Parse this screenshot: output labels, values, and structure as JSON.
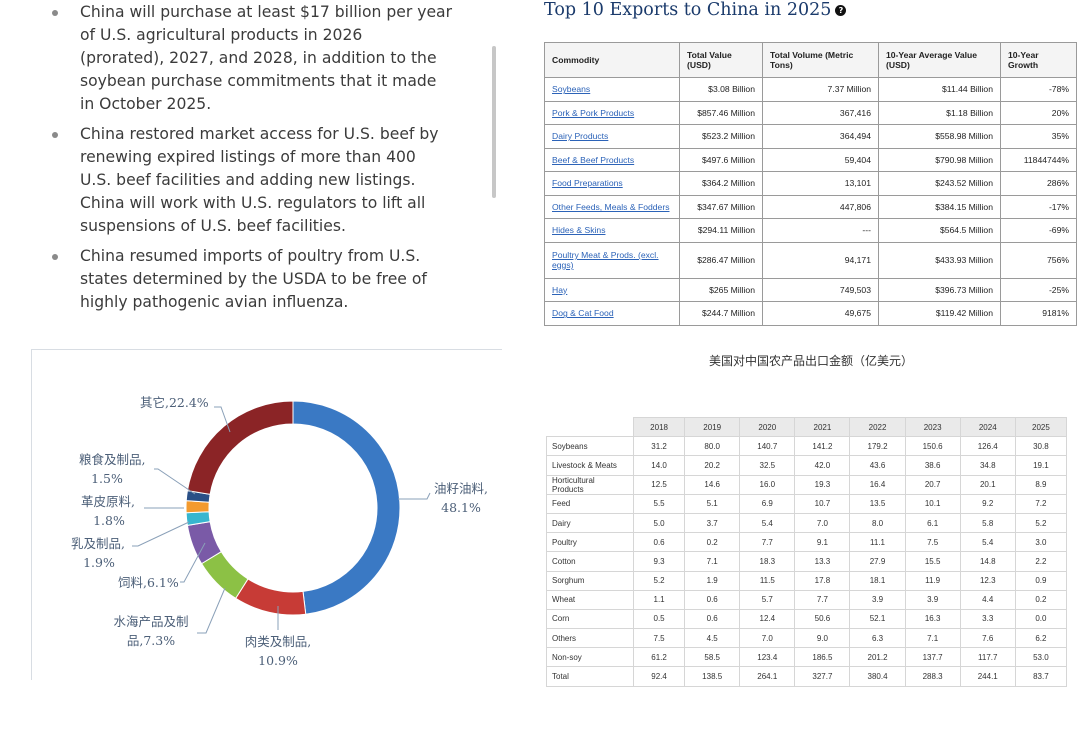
{
  "bullets": [
    {
      "lines": [
        "China will purchase at least $17 billion per year",
        "of U.S. agricultural products in 2026",
        "(prorated), 2027, and 2028, in addition to the",
        "soybean purchase commitments that it made",
        "in October 2025."
      ]
    },
    {
      "lines": [
        "China restored market access for U.S. beef by",
        "renewing expired listings of more than 400",
        "U.S. beef facilities and adding new listings.",
        "China will work with U.S. regulators to lift all",
        "suspensions of U.S. beef facilities."
      ]
    },
    {
      "lines": [
        "China resumed imports of poultry from U.S.",
        "states determined by the USDA to be free of",
        "highly pathogenic avian influenza."
      ]
    }
  ],
  "exports": {
    "title": "Top 10 Exports to China in 2025",
    "info_icon": "?",
    "headers": [
      "Commodity",
      "Total Value (USD)",
      "Total Volume (Metric Tons)",
      "10-Year Average Value (USD)",
      "10-Year Growth"
    ],
    "rows": [
      {
        "commodity": "Soybeans",
        "value": "$3.08 Billion",
        "volume": "7.37 Million",
        "avg": "$11.44 Billion",
        "growth": "-78%"
      },
      {
        "commodity": "Pork & Pork Products",
        "value": "$857.46 Million",
        "volume": "367,416",
        "avg": "$1.18 Billion",
        "growth": "20%"
      },
      {
        "commodity": "Dairy Products",
        "value": "$523.2 Million",
        "volume": "364,494",
        "avg": "$558.98 Million",
        "growth": "35%"
      },
      {
        "commodity": "Beef & Beef Products",
        "value": "$497.6 Million",
        "volume": "59,404",
        "avg": "$790.98 Million",
        "growth": "11844744%"
      },
      {
        "commodity": "Food Preparations",
        "value": "$364.2 Million",
        "volume": "13,101",
        "avg": "$243.52 Million",
        "growth": "286%"
      },
      {
        "commodity": "Other Feeds, Meals & Fodders",
        "value": "$347.67 Million",
        "volume": "447,806",
        "avg": "$384.15 Million",
        "growth": "-17%"
      },
      {
        "commodity": "Hides & Skins",
        "value": "$294.11 Million",
        "volume": "---",
        "avg": "$564.5 Million",
        "growth": "-69%"
      },
      {
        "commodity": "Poultry Meat & Prods. (excl. eggs)",
        "value": "$286.47 Million",
        "volume": "94,171",
        "avg": "$433.93 Million",
        "growth": "756%"
      },
      {
        "commodity": "Hay",
        "value": "$265 Million",
        "volume": "749,503",
        "avg": "$396.73 Million",
        "growth": "-25%"
      },
      {
        "commodity": "Dog & Cat Food",
        "value": "$244.7 Million",
        "volume": "49,675",
        "avg": "$119.42 Million",
        "growth": "9181%"
      }
    ]
  },
  "chart_data": [
    {
      "type": "pie",
      "slices": [
        {
          "label": "油籽油料,",
          "label2": "48.1%",
          "value": 48.1,
          "color": "#3a79c4"
        },
        {
          "label": "肉类及制品,",
          "label2": "10.9%",
          "value": 10.9,
          "color": "#c73b36"
        },
        {
          "label": "水海产品及制",
          "label2": "品,7.3%",
          "value": 7.3,
          "color": "#8cc145"
        },
        {
          "label": "饲料,6.1%",
          "label2": "",
          "value": 6.1,
          "color": "#7a5aa7"
        },
        {
          "label": "乳及制品,",
          "label2": "1.9%",
          "value": 1.9,
          "color": "#37b6cf"
        },
        {
          "label": "革皮原料,",
          "label2": "1.8%",
          "value": 1.8,
          "color": "#f39a2e"
        },
        {
          "label": "粮食及制品,",
          "label2": "1.5%",
          "value": 1.5,
          "color": "#2a4f86"
        },
        {
          "label": "其它,22.4%",
          "label2": "",
          "value": 22.4,
          "color": "#8b2426"
        }
      ]
    },
    {
      "type": "table",
      "title": "美国对中国农产品出口金额（亿美元）",
      "columns": [
        "2018",
        "2019",
        "2020",
        "2021",
        "2022",
        "2023",
        "2024",
        "2025"
      ],
      "rows": [
        {
          "name": "Soybeans",
          "values": [
            "31.2",
            "80.0",
            "140.7",
            "141.2",
            "179.2",
            "150.6",
            "126.4",
            "30.8"
          ]
        },
        {
          "name": "Livestock & Meats",
          "values": [
            "14.0",
            "20.2",
            "32.5",
            "42.0",
            "43.6",
            "38.6",
            "34.8",
            "19.1"
          ]
        },
        {
          "name": "Horticultural Products",
          "values": [
            "12.5",
            "14.6",
            "16.0",
            "19.3",
            "16.4",
            "20.7",
            "20.1",
            "8.9"
          ]
        },
        {
          "name": "Feed",
          "values": [
            "5.5",
            "5.1",
            "6.9",
            "10.7",
            "13.5",
            "10.1",
            "9.2",
            "7.2"
          ]
        },
        {
          "name": "Dairy",
          "values": [
            "5.0",
            "3.7",
            "5.4",
            "7.0",
            "8.0",
            "6.1",
            "5.8",
            "5.2"
          ]
        },
        {
          "name": "Poultry",
          "values": [
            "0.6",
            "0.2",
            "7.7",
            "9.1",
            "11.1",
            "7.5",
            "5.4",
            "3.0"
          ]
        },
        {
          "name": "Cotton",
          "values": [
            "9.3",
            "7.1",
            "18.3",
            "13.3",
            "27.9",
            "15.5",
            "14.8",
            "2.2"
          ]
        },
        {
          "name": "Sorghum",
          "values": [
            "5.2",
            "1.9",
            "11.5",
            "17.8",
            "18.1",
            "11.9",
            "12.3",
            "0.9"
          ]
        },
        {
          "name": "Wheat",
          "values": [
            "1.1",
            "0.6",
            "5.7",
            "7.7",
            "3.9",
            "3.9",
            "4.4",
            "0.2"
          ]
        },
        {
          "name": "Corn",
          "values": [
            "0.5",
            "0.6",
            "12.4",
            "50.6",
            "52.1",
            "16.3",
            "3.3",
            "0.0"
          ]
        },
        {
          "name": "Others",
          "values": [
            "7.5",
            "4.5",
            "7.0",
            "9.0",
            "6.3",
            "7.1",
            "7.6",
            "6.2"
          ]
        },
        {
          "name": "Non-soy",
          "values": [
            "61.2",
            "58.5",
            "123.4",
            "186.5",
            "201.2",
            "137.7",
            "117.7",
            "53.0"
          ]
        },
        {
          "name": "Total",
          "values": [
            "92.4",
            "138.5",
            "264.1",
            "327.7",
            "380.4",
            "288.3",
            "244.1",
            "83.7"
          ]
        }
      ]
    }
  ]
}
